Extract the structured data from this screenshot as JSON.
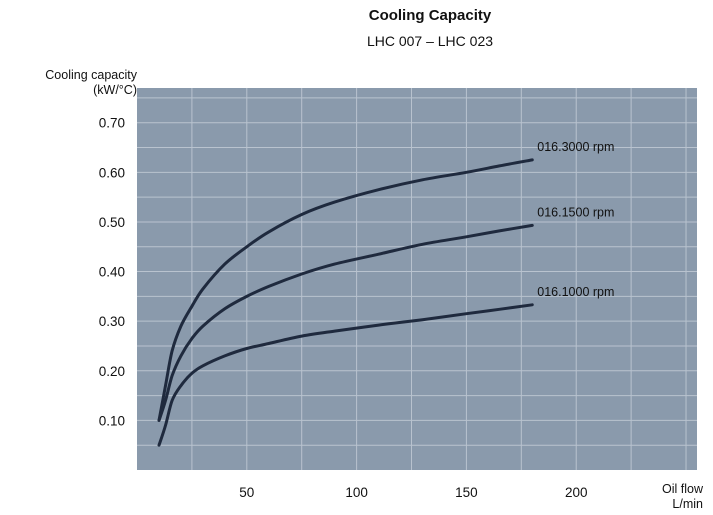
{
  "chart_data": {
    "type": "line",
    "title": "Cooling Capacity",
    "subtitle": "LHC 007 – LHC 023",
    "ylabel_line1": "Cooling capacity",
    "ylabel_line2": "(kW/°C)",
    "xlabel_line1": "Oil flow",
    "xlabel_line2": "L/min",
    "xlim": [
      0,
      255
    ],
    "ylim": [
      0,
      0.77
    ],
    "xticks": [
      50,
      100,
      150,
      200
    ],
    "xtick_labels": [
      "50",
      "100",
      "150",
      "200"
    ],
    "yticks": [
      0.1,
      0.2,
      0.3,
      0.4,
      0.5,
      0.6,
      0.7
    ],
    "ytick_labels": [
      "0.10",
      "0.20",
      "0.30",
      "0.40",
      "0.50",
      "0.60",
      "0.70"
    ],
    "grid": true,
    "plot_background": "#8a9aac",
    "grid_color": "#b9c3cf",
    "line_color": "#1f2a3e",
    "series": [
      {
        "name": "016.3000 rpm",
        "x": [
          10,
          13,
          16,
          20,
          25,
          30,
          40,
          50,
          60,
          75,
          90,
          110,
          130,
          150,
          165,
          180
        ],
        "y": [
          0.1,
          0.17,
          0.24,
          0.29,
          0.33,
          0.365,
          0.415,
          0.45,
          0.48,
          0.515,
          0.54,
          0.565,
          0.585,
          0.6,
          0.613,
          0.625
        ]
      },
      {
        "name": "016.1500 rpm",
        "x": [
          10,
          13,
          16,
          20,
          25,
          30,
          40,
          50,
          60,
          75,
          90,
          110,
          130,
          150,
          165,
          180
        ],
        "y": [
          0.1,
          0.14,
          0.19,
          0.23,
          0.265,
          0.29,
          0.325,
          0.35,
          0.37,
          0.395,
          0.415,
          0.435,
          0.455,
          0.47,
          0.482,
          0.493
        ]
      },
      {
        "name": "016.1000 rpm",
        "x": [
          10,
          13,
          16,
          20,
          25,
          30,
          40,
          50,
          60,
          75,
          90,
          110,
          130,
          150,
          165,
          180
        ],
        "y": [
          0.05,
          0.09,
          0.14,
          0.17,
          0.195,
          0.21,
          0.23,
          0.245,
          0.255,
          0.27,
          0.28,
          0.292,
          0.303,
          0.315,
          0.324,
          0.333
        ]
      }
    ]
  }
}
